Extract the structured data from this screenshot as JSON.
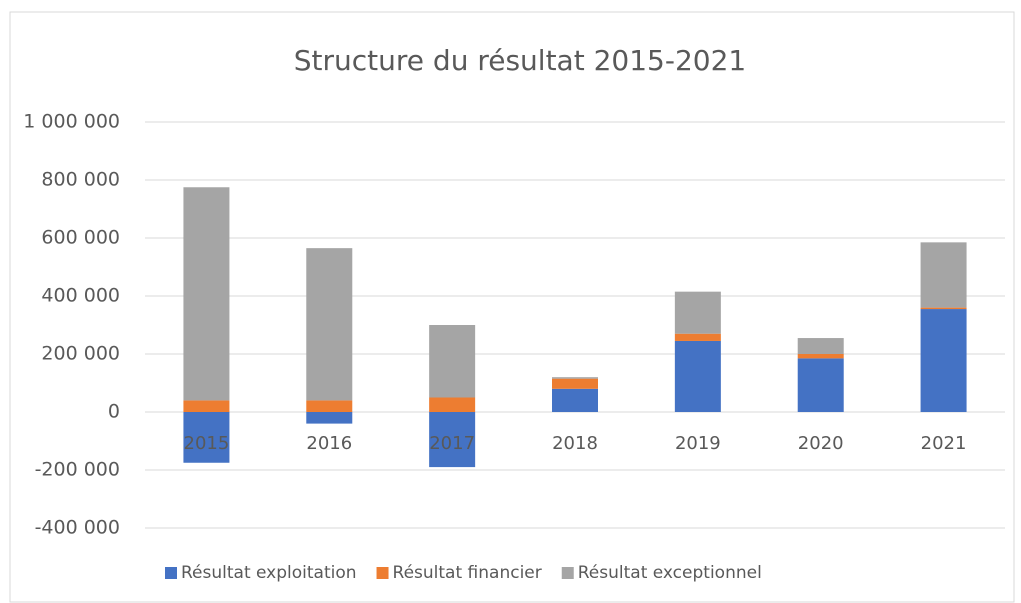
{
  "chart_data": {
    "type": "stacked_bar",
    "title": "Structure du résultat  2015-2021",
    "categories": [
      "2015",
      "2016",
      "2017",
      "2018",
      "2019",
      "2020",
      "2021"
    ],
    "series": [
      {
        "name": "Résultat exploitation",
        "color": "#4472c4",
        "values": [
          -175000,
          -40000,
          -190000,
          80000,
          245000,
          185000,
          355000
        ]
      },
      {
        "name": "Résultat financier",
        "color": "#ed7d31",
        "values": [
          40000,
          40000,
          50000,
          35000,
          25000,
          15000,
          5000
        ]
      },
      {
        "name": "Résultat exceptionnel",
        "color": "#a5a5a5",
        "values": [
          735000,
          525000,
          250000,
          5000,
          145000,
          55000,
          225000
        ]
      }
    ],
    "ylim": [
      -400000,
      1000000
    ],
    "yticks": [
      {
        "value": -400000,
        "label": "-400 000"
      },
      {
        "value": -200000,
        "label": "-200 000"
      },
      0,
      {
        "value": 200000,
        "label": "200 000"
      },
      {
        "value": 400000,
        "label": "400 000"
      },
      {
        "value": 600000,
        "label": "600 000"
      },
      {
        "value": 800000,
        "label": "800 000"
      },
      {
        "value": 1000000,
        "label": "1 000 000"
      }
    ],
    "grid": true,
    "legend": "bottom"
  }
}
